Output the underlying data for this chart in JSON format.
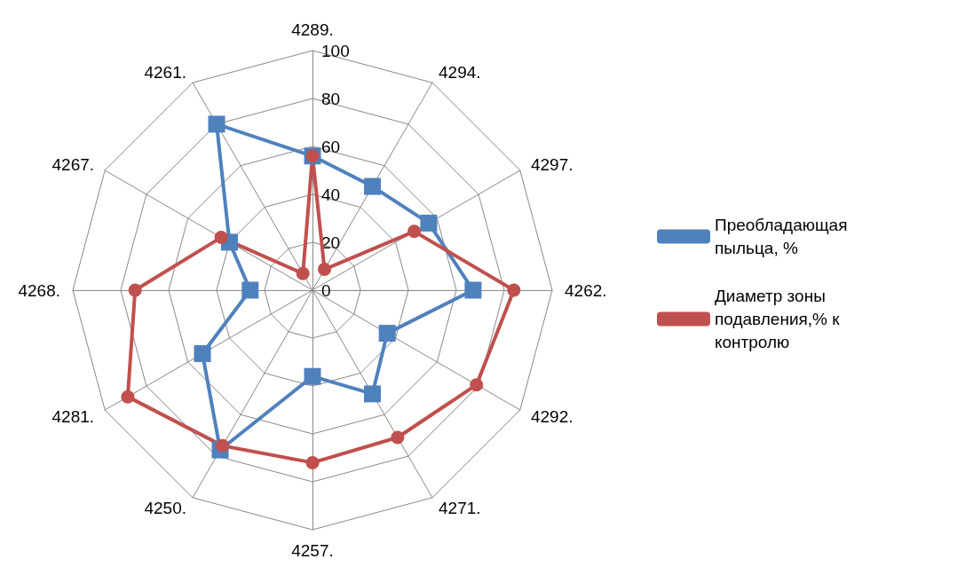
{
  "chart_data": {
    "type": "radar",
    "categories": [
      "4289.",
      "4294.",
      "4297.",
      "4262.",
      "4292.",
      "4271.",
      "4257.",
      "4250.",
      "4281.",
      "4268.",
      "4267.",
      "4261."
    ],
    "series": [
      {
        "name": "Преобладающая пыльца, %",
        "color": "#4f81bd",
        "marker": "square",
        "values": [
          56,
          50,
          56,
          67,
          36,
          50,
          36,
          77,
          53,
          26,
          40,
          80
        ]
      },
      {
        "name": "Диаметр зоны подавления,% к контролю",
        "color": "#c0504d",
        "marker": "circle",
        "values": [
          56,
          10,
          49,
          84,
          79,
          71,
          72,
          75,
          89,
          74,
          44,
          8
        ]
      }
    ],
    "ylim": [
      0,
      100
    ],
    "yticks": [
      0,
      20,
      40,
      60,
      80,
      100
    ],
    "grid": true,
    "legend": "right"
  }
}
